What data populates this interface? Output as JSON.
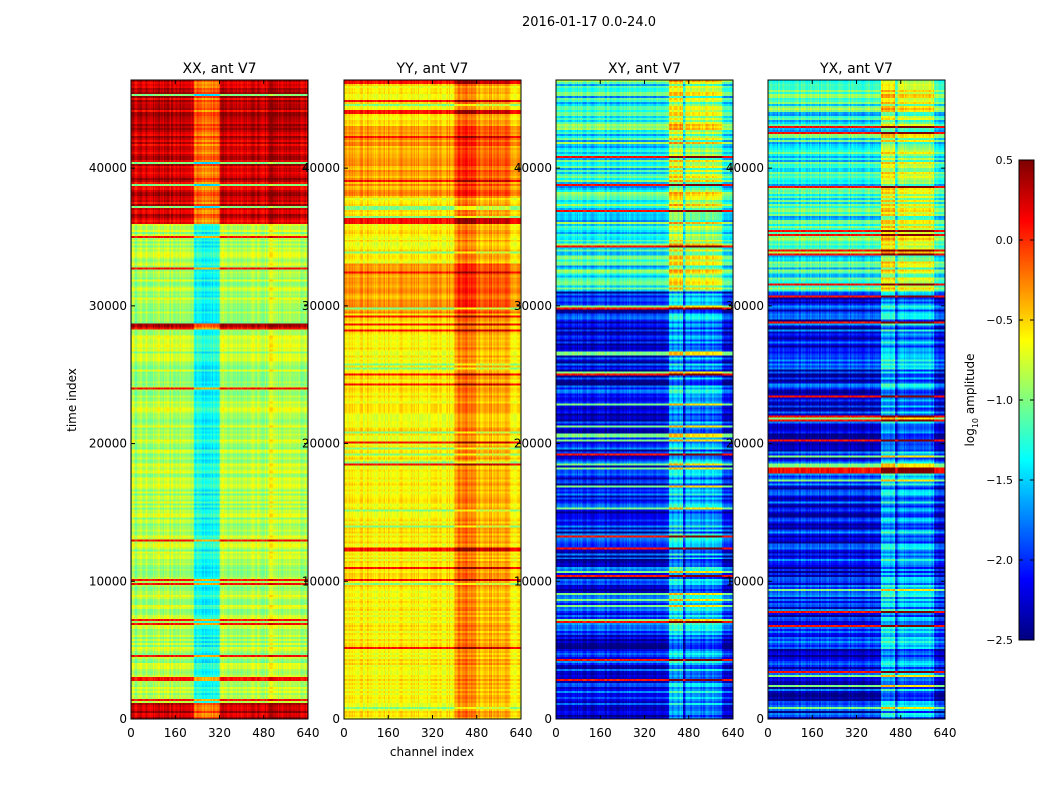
{
  "chart_data": {
    "type": "heatmap",
    "title": "2016-01-17 0.0-24.0",
    "xlabel": "channel index",
    "ylabel": "time index",
    "xlim": [
      0,
      640
    ],
    "ylim": [
      0,
      46400
    ],
    "xticks": [
      "0",
      "160",
      "320",
      "480",
      "640"
    ],
    "xtick_values": [
      0,
      160,
      320,
      480,
      640
    ],
    "yticks": [
      "0",
      "10000",
      "20000",
      "30000",
      "40000"
    ],
    "ytick_values": [
      0,
      10000,
      20000,
      30000,
      40000
    ],
    "panels": [
      {
        "title": "XX, ant V7",
        "base_level": -0.85,
        "row_spread": 0.35,
        "high_time_ranges": [
          [
            0,
            1200
          ],
          [
            28300,
            28700
          ],
          [
            36000,
            46400
          ]
        ],
        "high_level": 0.3,
        "channel_features": [
          {
            "range": [
              230,
              320
            ],
            "delta": -0.45
          },
          {
            "range": [
              500,
              520
            ],
            "delta": 0.2
          }
        ]
      },
      {
        "title": "YY, ant V7",
        "base_level": -0.6,
        "row_spread": 0.25,
        "high_time_ranges": [
          [
            29500,
            33000
          ],
          [
            38000,
            43000
          ]
        ],
        "high_level": -0.35,
        "channel_features": [
          {
            "range": [
              400,
              480
            ],
            "delta": 0.35
          },
          {
            "range": [
              480,
              600
            ],
            "delta": 0.2
          }
        ]
      },
      {
        "title": "XY, ant V7",
        "base_level": -2.1,
        "row_spread": 0.9,
        "high_time_ranges": [
          [
            31000,
            46400
          ]
        ],
        "high_level": -1.3,
        "channel_features": [
          {
            "range": [
              410,
              460
            ],
            "delta": 0.6
          },
          {
            "range": [
              470,
              600
            ],
            "delta": 0.45
          }
        ]
      },
      {
        "title": "YX, ant V7",
        "base_level": -2.1,
        "row_spread": 0.9,
        "high_time_ranges": [
          [
            31000,
            46400
          ]
        ],
        "high_level": -1.3,
        "channel_features": [
          {
            "range": [
              410,
              460
            ],
            "delta": 0.6
          },
          {
            "range": [
              470,
              600
            ],
            "delta": 0.45
          }
        ]
      }
    ],
    "colorbar": {
      "label_prefix": "log",
      "label_sub": "10",
      "label_suffix": " amplitude",
      "colormap": "jet",
      "vmin": -2.5,
      "vmax": 0.5,
      "ticks": [
        "0.5",
        "0.0",
        "−0.5",
        "−1.0",
        "−1.5",
        "−2.0",
        "−2.5"
      ],
      "tick_values": [
        0.5,
        0.0,
        -0.5,
        -1.0,
        -1.5,
        -2.0,
        -2.5
      ]
    }
  }
}
